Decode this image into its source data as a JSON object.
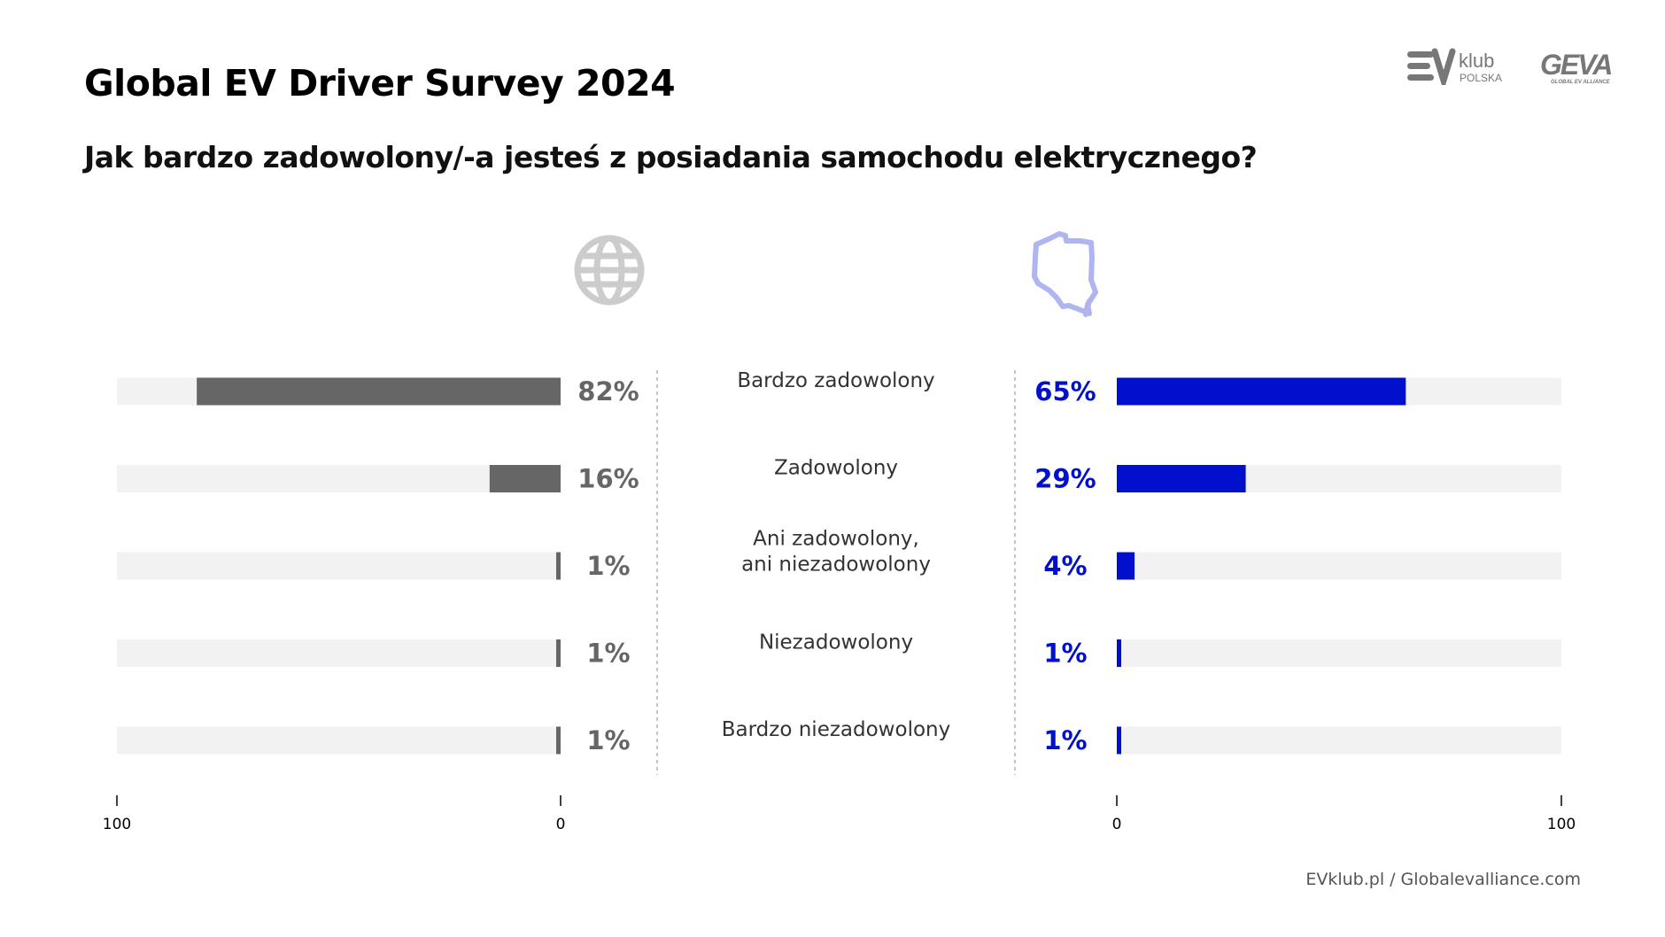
{
  "title": "Global EV Driver Survey 2024",
  "subtitle": "Jak bardzo zadowolony/-a jesteś z posiadania samochodu elektrycznego?",
  "logos": {
    "evklub": "EV klub POLSKA",
    "geva": "GEVA GLOBAL EV ALLIANCE"
  },
  "icons": {
    "left": "globe-icon",
    "right": "poland-map-icon"
  },
  "colors": {
    "global": "#666666",
    "poland": "#0010CC",
    "track": "#F2F2F2",
    "globe_icon": "#CCCCCC",
    "poland_icon": "#B0B4F0"
  },
  "footer": {
    "left": "EVklub.pl",
    "separator": "/",
    "right": "Globalevalliance.com"
  },
  "chart_data": {
    "type": "bar",
    "orientation": "horizontal-butterfly",
    "categories": [
      "Bardzo zadowolony",
      "Zadowolony",
      "Ani zadowolony,\nani niezadowolony",
      "Niezadowolony",
      "Bardzo niezadowolony"
    ],
    "series": [
      {
        "values": [
          82,
          16,
          1,
          1,
          1
        ],
        "labels": [
          "82%",
          "16%",
          "1%",
          "1%",
          "1%"
        ]
      },
      {
        "values": [
          65,
          29,
          4,
          1,
          1
        ],
        "labels": [
          "65%",
          "29%",
          "4%",
          "1%",
          "1%"
        ]
      }
    ],
    "xlim": [
      0,
      100
    ],
    "ticks": {
      "left": [
        "100",
        "0"
      ],
      "right": [
        "0",
        "100"
      ]
    },
    "grid": false
  }
}
